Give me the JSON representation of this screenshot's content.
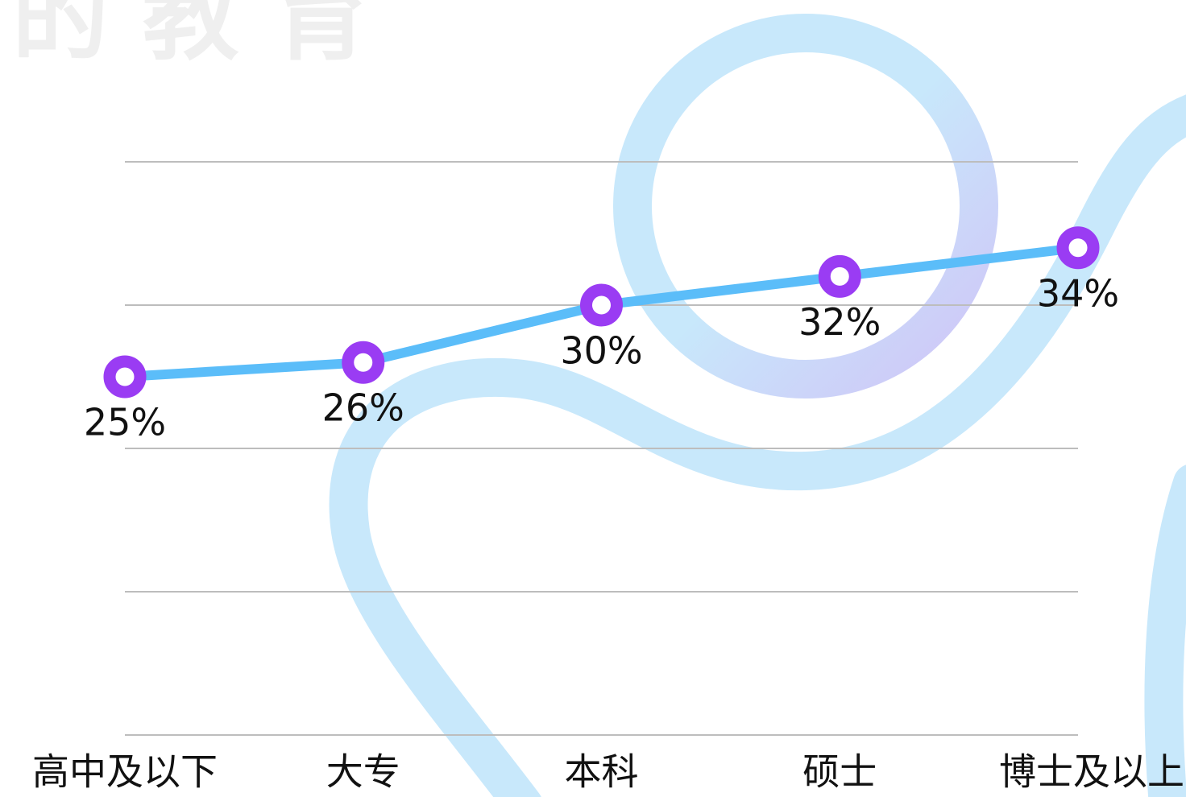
{
  "chart_data": {
    "type": "line",
    "watermark": "的 教 育",
    "categories": [
      "高中及以下",
      "大专",
      "本科",
      "硕士",
      "博士及以上"
    ],
    "series": [
      {
        "name": null,
        "color": "#5bbdf9",
        "marker_color": "#9a3cf3",
        "values": [
          25,
          26,
          30,
          32,
          34
        ],
        "value_labels": [
          "25%",
          "26%",
          "30%",
          "32%",
          "34%"
        ]
      }
    ],
    "ylim": [
      0,
      40
    ],
    "yticks": [
      0,
      10,
      20,
      30,
      40
    ],
    "grid": true
  }
}
